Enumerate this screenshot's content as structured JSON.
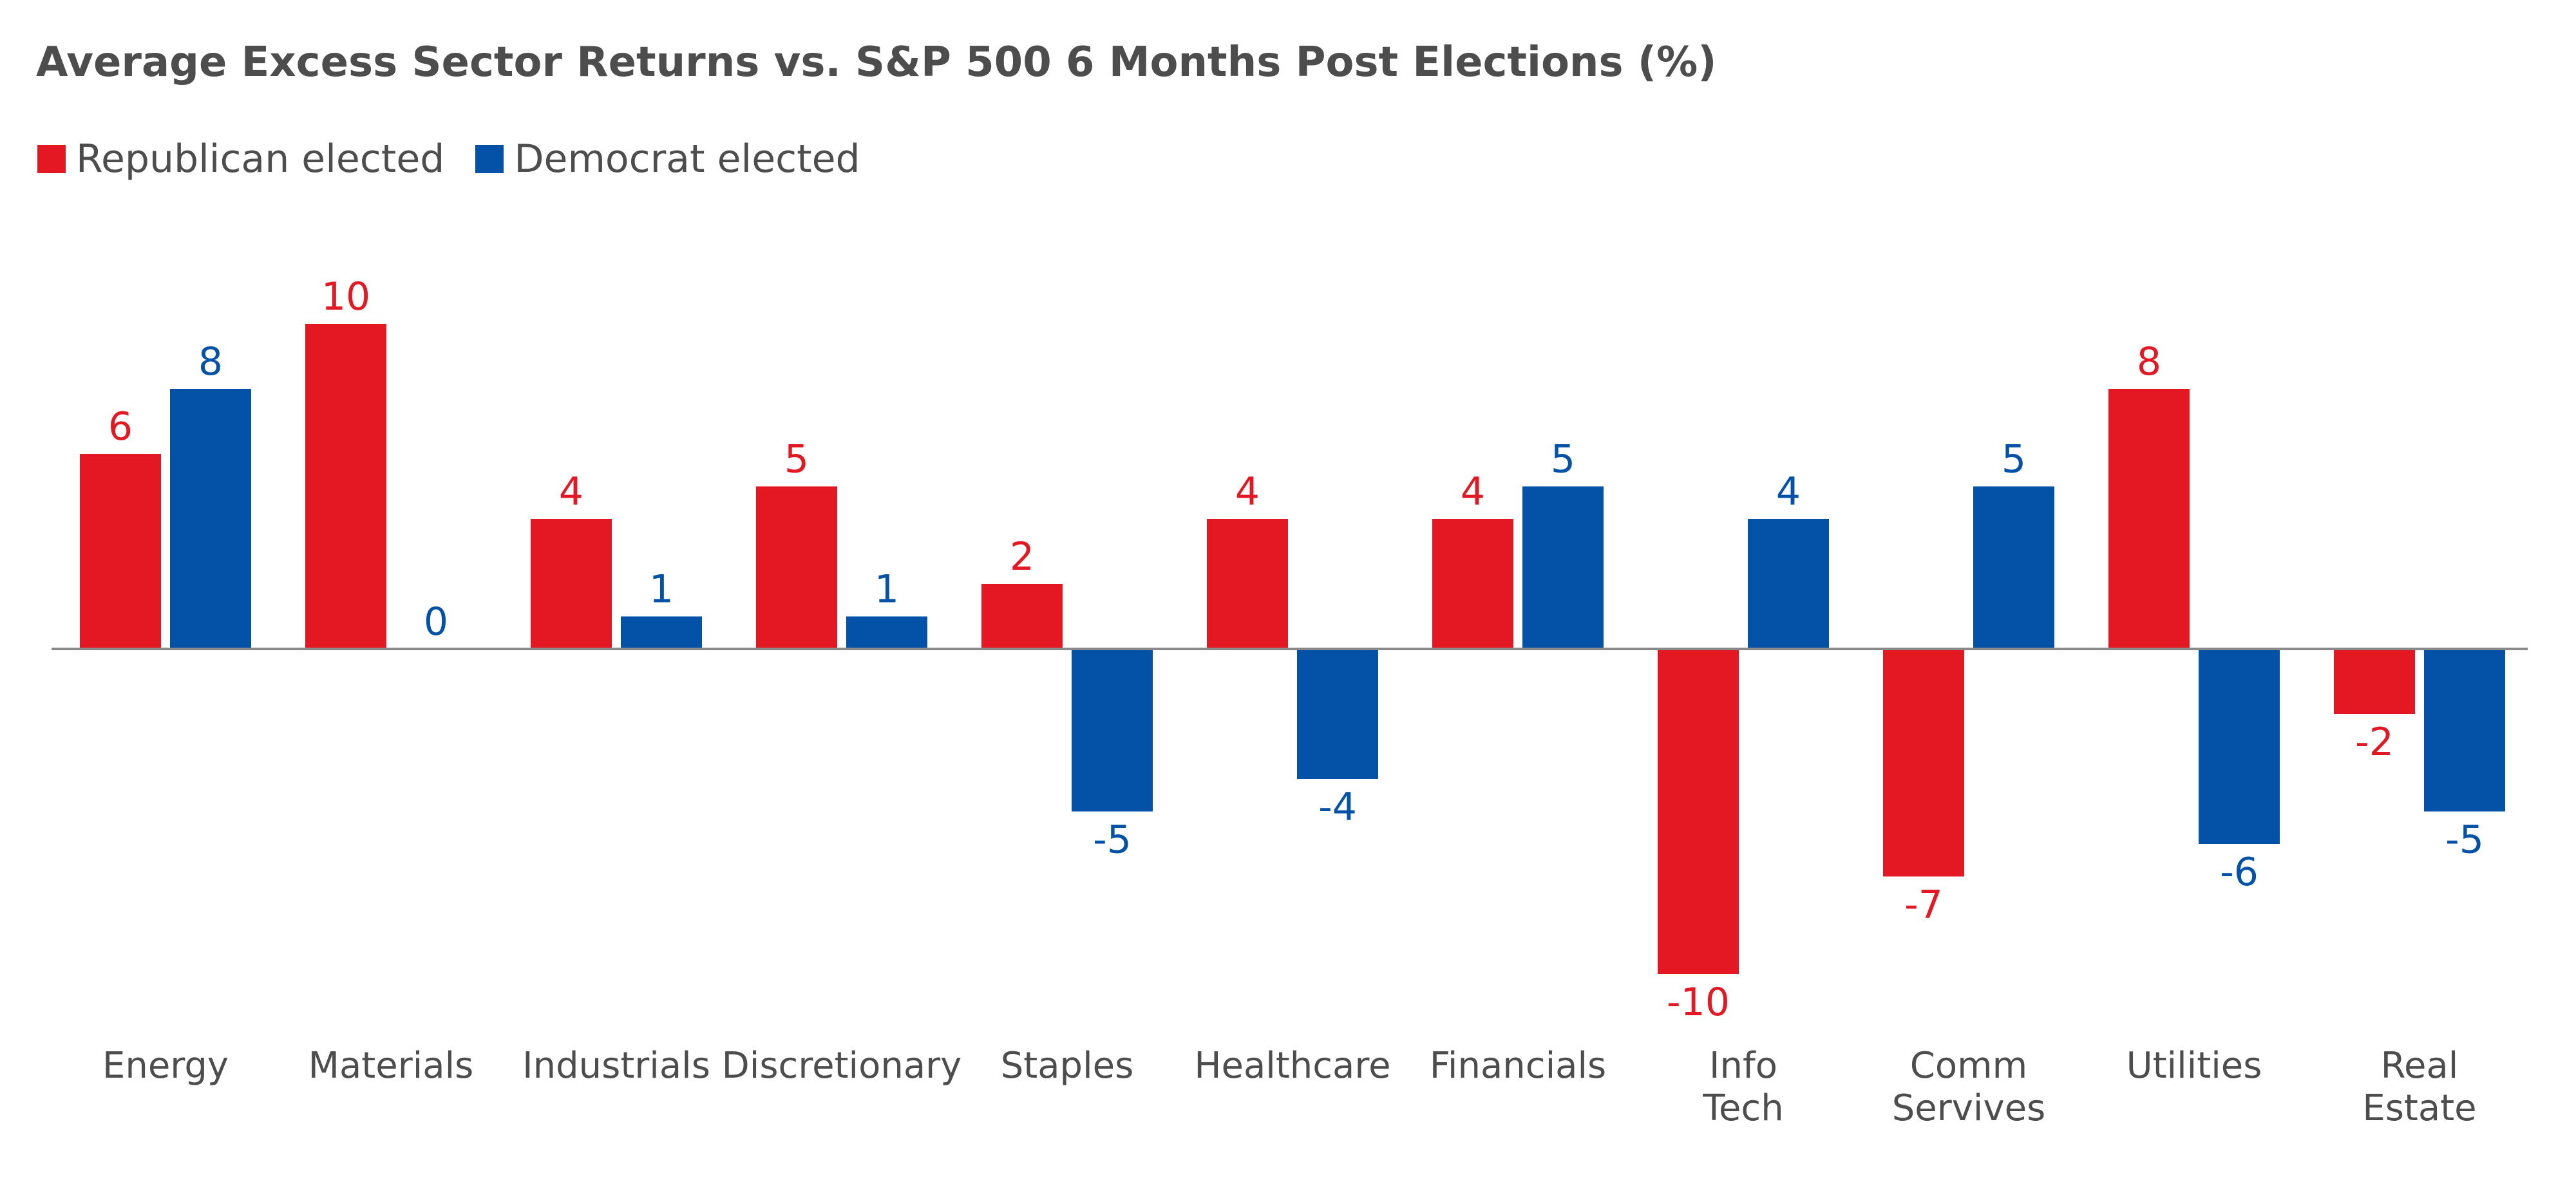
{
  "title": "Average Excess Sector Returns vs. S&P 500 6 Months Post Elections (%)",
  "legend": {
    "republican": "Republican elected",
    "democrat": "Democrat elected"
  },
  "colors": {
    "republican": "#e31822",
    "democrat": "#0452a8",
    "axis": "#8a8a8a",
    "text": "#4d4d4d"
  },
  "chart_data": {
    "type": "bar",
    "title": "Average Excess Sector Returns vs. S&P 500 6 Months Post Elections (%)",
    "xlabel": "",
    "ylabel": "",
    "grid": false,
    "legend_position": "top-left",
    "categories": [
      [
        "Energy"
      ],
      [
        "Materials"
      ],
      [
        "Industrials"
      ],
      [
        "Discretionary"
      ],
      [
        "Staples"
      ],
      [
        "Healthcare"
      ],
      [
        "Financials"
      ],
      [
        "Info",
        "Tech"
      ],
      [
        "Comm",
        "Servives"
      ],
      [
        "Utilities"
      ],
      [
        "Real",
        "Estate"
      ]
    ],
    "series": [
      {
        "name": "Republican elected",
        "key": "republican",
        "values": [
          6,
          10,
          4,
          5,
          2,
          4,
          4,
          -10,
          -7,
          8,
          -2
        ]
      },
      {
        "name": "Democrat elected",
        "key": "democrat",
        "values": [
          8,
          0,
          1,
          1,
          -5,
          -4,
          5,
          4,
          5,
          -6,
          -5
        ]
      }
    ],
    "ylim": [
      -12,
      12
    ]
  }
}
